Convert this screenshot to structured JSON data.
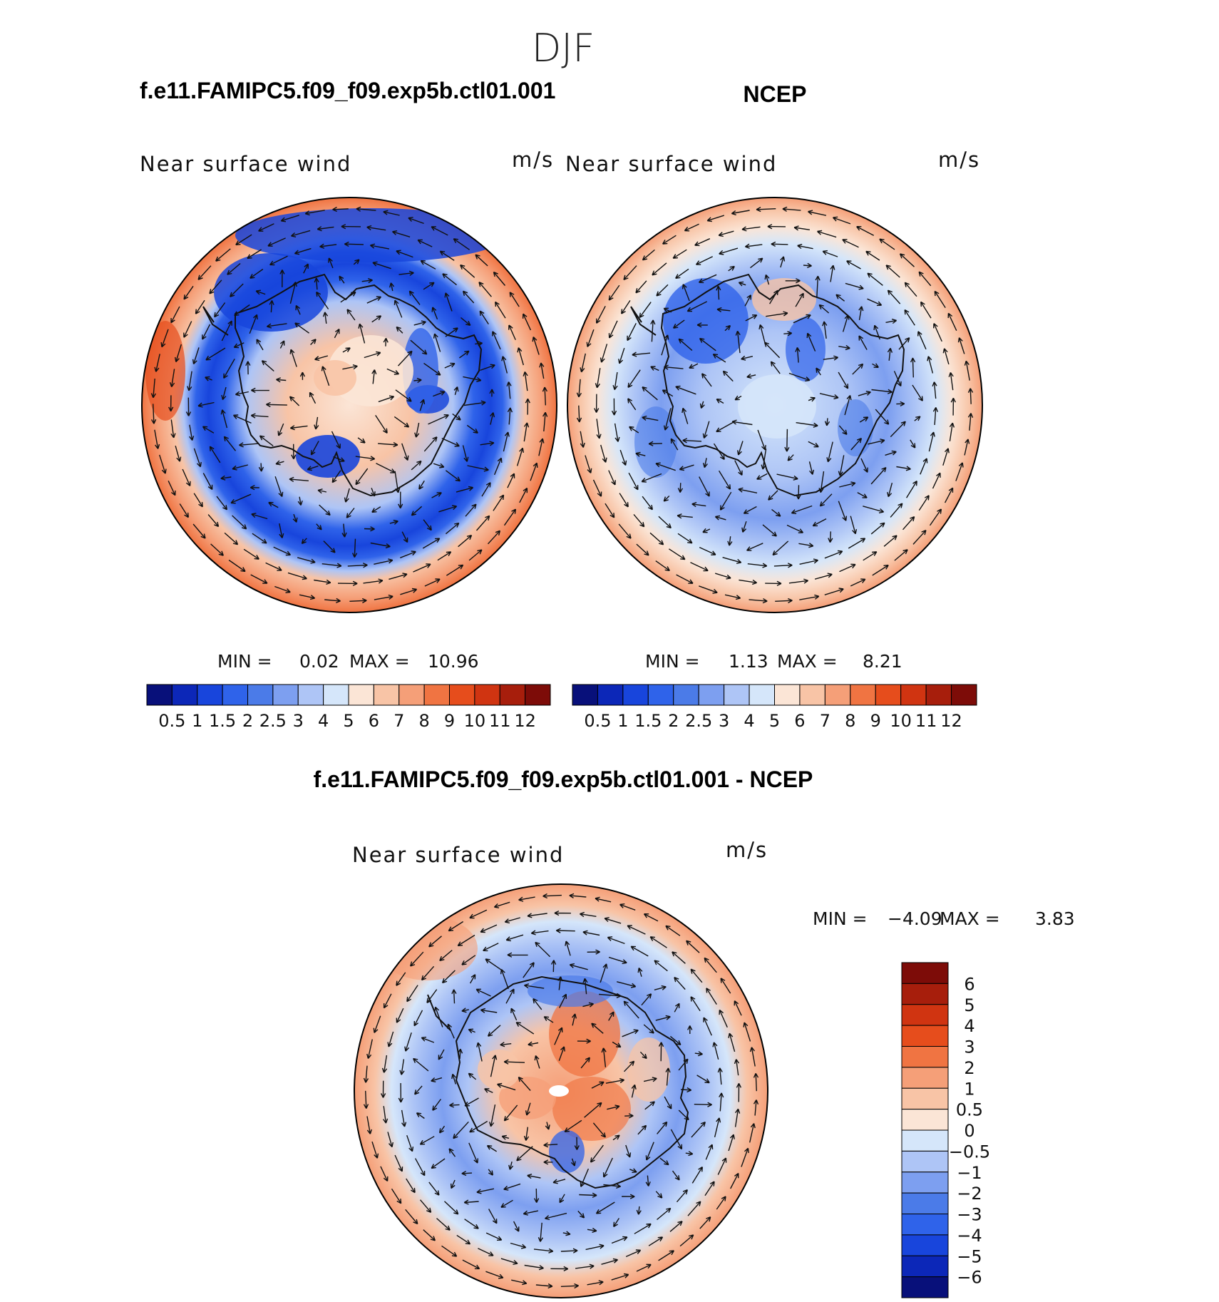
{
  "season": "DJF",
  "panels": [
    {
      "title": "f.e11.FAMIPC5.f09_f09.exp5b.ctl01.001",
      "variable": "Near surface wind",
      "units": "m/s",
      "min_label": "MIN =",
      "min_value": "0.02",
      "max_label": "MAX =",
      "max_value": "10.96",
      "projection": "south polar stereographic",
      "pattern": "low winds (0.5-2 m/s) over Antarctic coast and interior ring; strong westerlies (8-11 m/s) in outer ring"
    },
    {
      "title": "NCEP",
      "variable": "Near surface wind",
      "units": "m/s",
      "min_label": "MIN =",
      "min_value": "1.13",
      "max_label": "MAX =",
      "max_value": "8.21",
      "projection": "south polar stereographic",
      "pattern": "moderate winds (2-4 m/s) over continent; westerlies (7-9 m/s) in outer ring"
    },
    {
      "title": "f.e11.FAMIPC5.f09_f09.exp5b.ctl01.001 - NCEP",
      "variable": "Near surface wind",
      "units": "m/s",
      "min_label": "MIN =",
      "min_value": "−4.09",
      "max_label": "MAX =",
      "max_value": "3.83",
      "projection": "south polar stereographic",
      "pattern": "positive differences over East Antarctic interior and outer ring; negative around coast"
    }
  ],
  "colorbars": {
    "field": {
      "levels": [
        "0.5",
        "1",
        "1.5",
        "2",
        "2.5",
        "3",
        "4",
        "5",
        "6",
        "7",
        "8",
        "9",
        "10",
        "11",
        "12"
      ],
      "colors": [
        "#08107a",
        "#0c27b8",
        "#1845dc",
        "#2f63ea",
        "#4b7be8",
        "#7d9ff0",
        "#aec5f6",
        "#d5e6fa",
        "#fbe5d6",
        "#f8c4a6",
        "#f59f78",
        "#f07442",
        "#e64d1c",
        "#d03411",
        "#a71e0c",
        "#7d0c08"
      ]
    },
    "difference": {
      "levels": [
        "6",
        "5",
        "4",
        "3",
        "2",
        "1",
        "0.5",
        "0",
        "−0.5",
        "−1",
        "−2",
        "−3",
        "−4",
        "−5",
        "−6"
      ],
      "colors": [
        "#7d0c08",
        "#a71e0c",
        "#d03411",
        "#e64d1c",
        "#f07442",
        "#f59f78",
        "#f8c4a6",
        "#fbe5d6",
        "#d5e6fa",
        "#aec5f6",
        "#7d9ff0",
        "#4b7be8",
        "#2f63ea",
        "#1845dc",
        "#0c27b8",
        "#08107a"
      ]
    }
  }
}
